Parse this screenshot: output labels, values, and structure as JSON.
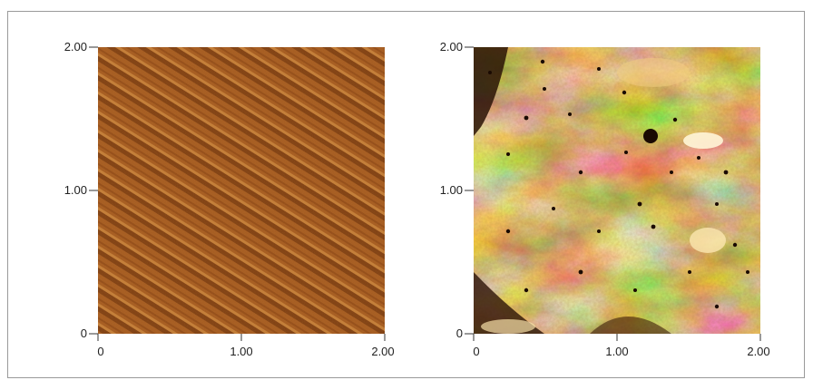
{
  "panels": [
    {
      "name": "left-afm-image",
      "y_ticks": [
        "2.00",
        "1.00",
        "0"
      ],
      "x_ticks": [
        "0",
        "1.00",
        "2.00"
      ],
      "texture": "diagonal-step-terraces",
      "colors": {
        "dark": "#7a3a10",
        "mid": "#a0561e",
        "light": "#c07a34"
      }
    },
    {
      "name": "right-afm-image",
      "y_ticks": [
        "2.00",
        "1.00",
        "0"
      ],
      "x_ticks": [
        "0",
        "1.00",
        "2.00"
      ],
      "texture": "rough-islands-with-pits",
      "colors": {
        "dark": "#2b1405",
        "mid": "#b87a2a",
        "light": "#f3d78a",
        "highlight": "#fff4d0"
      }
    }
  ]
}
